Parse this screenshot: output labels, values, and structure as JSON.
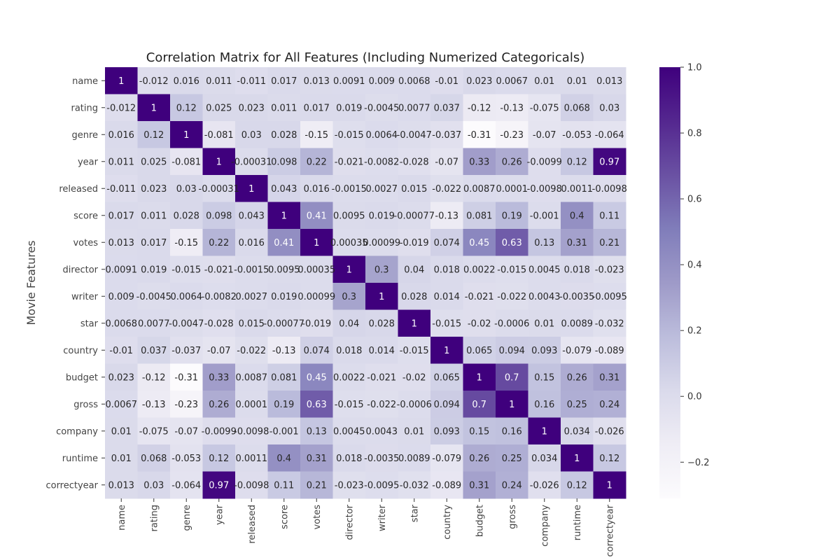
{
  "chart_data": {
    "type": "heatmap",
    "title": "Correlation Matrix for All Features (Including Numerized Categoricals)",
    "xlabel": "",
    "ylabel": "Movie Features",
    "x_categories": [
      "name",
      "rating",
      "genre",
      "year",
      "released",
      "score",
      "votes",
      "director",
      "writer",
      "star",
      "country",
      "budget",
      "gross",
      "company",
      "runtime",
      "correctyear"
    ],
    "y_categories": [
      "name",
      "rating",
      "genre",
      "year",
      "released",
      "score",
      "votes",
      "director",
      "writer",
      "star",
      "country",
      "budget",
      "gross",
      "company",
      "runtime",
      "correctyear"
    ],
    "cell_labels": [
      [
        "1",
        "-0.012",
        "0.016",
        "0.011",
        "-0.011",
        "0.017",
        "0.013",
        "0.0091",
        "0.009",
        "0.0068",
        "-0.01",
        "0.023",
        "0.0067",
        "0.01",
        "0.01",
        "0.013"
      ],
      [
        "-0.012",
        "1",
        "0.12",
        "0.025",
        "0.023",
        "0.011",
        "0.017",
        "0.019",
        "-0.0045",
        "0.0077",
        "0.037",
        "-0.12",
        "-0.13",
        "-0.075",
        "0.068",
        "0.03"
      ],
      [
        "0.016",
        "0.12",
        "1",
        "-0.081",
        "0.03",
        "0.028",
        "-0.15",
        "-0.015",
        "0.0064",
        "-0.0047",
        "-0.037",
        "-0.31",
        "-0.23",
        "-0.07",
        "-0.053",
        "-0.064"
      ],
      [
        "0.011",
        "0.025",
        "-0.081",
        "1",
        "-0.00031",
        "0.098",
        "0.22",
        "-0.021",
        "-0.0082",
        "-0.028",
        "-0.07",
        "0.33",
        "0.26",
        "-0.0099",
        "0.12",
        "0.97"
      ],
      [
        "-0.011",
        "0.023",
        "0.03",
        "-0.00031",
        "1",
        "0.043",
        "0.016",
        "-0.0015",
        "0.0027",
        "0.015",
        "-0.022",
        "0.0087",
        "0.0001",
        "-0.0098",
        "0.0011",
        "-0.0098"
      ],
      [
        "0.017",
        "0.011",
        "0.028",
        "0.098",
        "0.043",
        "1",
        "0.41",
        "0.0095",
        "0.019",
        "-0.00077",
        "-0.13",
        "0.081",
        "0.19",
        "-0.001",
        "0.4",
        "0.11"
      ],
      [
        "0.013",
        "0.017",
        "-0.15",
        "0.22",
        "0.016",
        "0.41",
        "1",
        "0.00035",
        "0.00099",
        "-0.019",
        "0.074",
        "0.45",
        "0.63",
        "0.13",
        "0.31",
        "0.21"
      ],
      [
        "0.0091",
        "0.019",
        "-0.015",
        "-0.021",
        "-0.0015",
        "0.0095",
        "0.00035",
        "1",
        "0.3",
        "0.04",
        "0.018",
        "0.0022",
        "-0.015",
        "0.0045",
        "0.018",
        "-0.023"
      ],
      [
        "0.009",
        "-0.0045",
        "0.0064",
        "-0.0082",
        "0.0027",
        "0.019",
        "0.00099",
        "0.3",
        "1",
        "0.028",
        "0.014",
        "-0.021",
        "-0.022",
        "0.0043",
        "-0.0035",
        "-0.0095"
      ],
      [
        "0.0068",
        "0.0077",
        "-0.0047",
        "-0.028",
        "0.015",
        "-0.00077",
        "-0.019",
        "0.04",
        "0.028",
        "1",
        "-0.015",
        "-0.02",
        "-0.0006",
        "0.01",
        "0.0089",
        "-0.032"
      ],
      [
        "-0.01",
        "0.037",
        "-0.037",
        "-0.07",
        "-0.022",
        "-0.13",
        "0.074",
        "0.018",
        "0.014",
        "-0.015",
        "1",
        "0.065",
        "0.094",
        "0.093",
        "-0.079",
        "-0.089"
      ],
      [
        "0.023",
        "-0.12",
        "-0.31",
        "0.33",
        "0.0087",
        "0.081",
        "0.45",
        "0.0022",
        "-0.021",
        "-0.02",
        "0.065",
        "1",
        "0.7",
        "0.15",
        "0.26",
        "0.31"
      ],
      [
        "0.0067",
        "-0.13",
        "-0.23",
        "0.26",
        "0.0001",
        "0.19",
        "0.63",
        "-0.015",
        "-0.022",
        "-0.0006",
        "0.094",
        "0.7",
        "1",
        "0.16",
        "0.25",
        "0.24"
      ],
      [
        "0.01",
        "-0.075",
        "-0.07",
        "-0.0099",
        "-0.0098",
        "-0.001",
        "0.13",
        "0.0045",
        "0.0043",
        "0.01",
        "0.093",
        "0.15",
        "0.16",
        "1",
        "0.034",
        "-0.026"
      ],
      [
        "0.01",
        "0.068",
        "-0.053",
        "0.12",
        "0.0011",
        "0.4",
        "0.31",
        "0.018",
        "-0.0035",
        "0.0089",
        "-0.079",
        "0.26",
        "0.25",
        "0.034",
        "1",
        "0.12"
      ],
      [
        "0.013",
        "0.03",
        "-0.064",
        "0.97",
        "-0.0098",
        "0.11",
        "0.21",
        "-0.023",
        "-0.0095",
        "-0.032",
        "-0.089",
        "0.31",
        "0.24",
        "-0.026",
        "0.12",
        "1"
      ]
    ],
    "colormap": "Purples",
    "color_range": [
      -0.31,
      1.0
    ],
    "colorbar_ticks": [
      "1.0",
      "0.8",
      "0.6",
      "0.4",
      "0.2",
      "0.0",
      "−0.2"
    ],
    "colorbar_tick_values": [
      1.0,
      0.8,
      0.6,
      0.4,
      0.2,
      0.0,
      -0.2
    ],
    "grid": false,
    "legend": "colorbar-right"
  }
}
